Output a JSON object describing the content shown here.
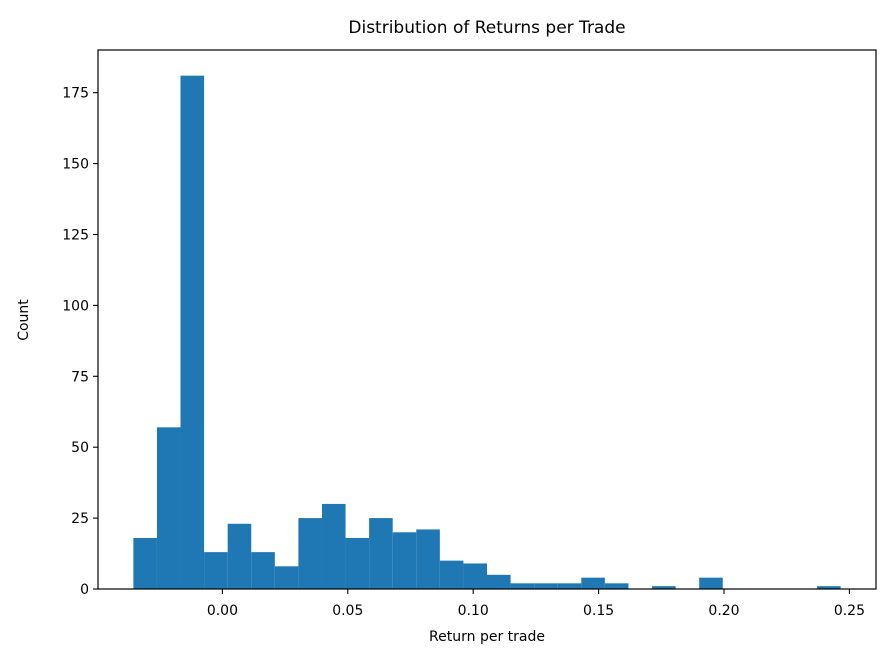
{
  "chart_data": {
    "type": "bar",
    "subtype": "histogram",
    "title": "Distribution of Returns per Trade",
    "xlabel": "Return per trade",
    "ylabel": "Count",
    "bar_color": "#1f77b4",
    "background_color": "#ffffff",
    "grid": false,
    "legend": null,
    "bin_start": -0.0355,
    "bin_width": 0.0094,
    "counts": [
      18,
      57,
      181,
      13,
      23,
      13,
      8,
      25,
      30,
      18,
      25,
      20,
      21,
      10,
      9,
      5,
      2,
      2,
      2,
      4,
      2,
      0,
      1,
      0,
      4,
      0,
      0,
      0,
      0,
      1
    ],
    "x_ticks": [
      0.0,
      0.05,
      0.1,
      0.15,
      0.2,
      0.25
    ],
    "x_tick_labels": [
      "0.00",
      "0.05",
      "0.10",
      "0.15",
      "0.20",
      "0.25"
    ],
    "y_ticks": [
      0,
      25,
      50,
      75,
      100,
      125,
      150,
      175
    ],
    "y_tick_labels": [
      "0",
      "25",
      "50",
      "75",
      "100",
      "125",
      "150",
      "175"
    ],
    "xlim": [
      -0.0496,
      0.2606
    ],
    "ylim": [
      0,
      190.05
    ]
  }
}
